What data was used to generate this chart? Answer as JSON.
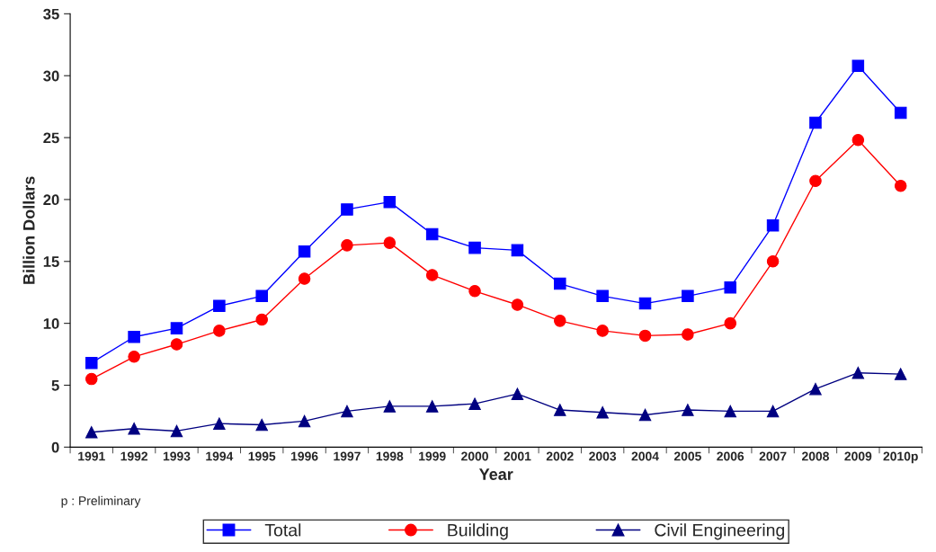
{
  "chart_data": {
    "type": "line",
    "xlabel": "Year",
    "ylabel": "Billion Dollars",
    "categories": [
      "1991",
      "1992",
      "1993",
      "1994",
      "1995",
      "1996",
      "1997",
      "1998",
      "1999",
      "2000",
      "2001",
      "2002",
      "2003",
      "2004",
      "2005",
      "2006",
      "2007",
      "2008",
      "2009",
      "2010p"
    ],
    "series": [
      {
        "name": "Total",
        "color": "#0000ff",
        "marker": "square",
        "values": [
          6.8,
          8.9,
          9.6,
          11.4,
          12.2,
          15.8,
          19.2,
          19.8,
          17.2,
          16.1,
          15.9,
          13.2,
          12.2,
          11.6,
          12.2,
          12.9,
          17.9,
          26.2,
          30.8,
          27.0
        ]
      },
      {
        "name": "Building",
        "color": "#ff0000",
        "marker": "circle",
        "values": [
          5.5,
          7.3,
          8.3,
          9.4,
          10.3,
          13.6,
          16.3,
          16.5,
          13.9,
          12.6,
          11.5,
          10.2,
          9.4,
          9.0,
          9.1,
          10.0,
          15.0,
          21.5,
          24.8,
          21.1
        ]
      },
      {
        "name": "Civil Engineering",
        "color": "#000080",
        "marker": "triangle",
        "values": [
          1.2,
          1.5,
          1.3,
          1.9,
          1.8,
          2.1,
          2.9,
          3.3,
          3.3,
          3.5,
          4.3,
          3.0,
          2.8,
          2.6,
          3.0,
          2.9,
          2.9,
          4.7,
          6.0,
          5.9
        ]
      }
    ],
    "ylim": [
      0,
      35
    ],
    "yticks": [
      0,
      5,
      10,
      15,
      20,
      25,
      30,
      35
    ],
    "grid": false,
    "legend": "bottom",
    "annotations": [
      "p : Preliminary"
    ]
  }
}
